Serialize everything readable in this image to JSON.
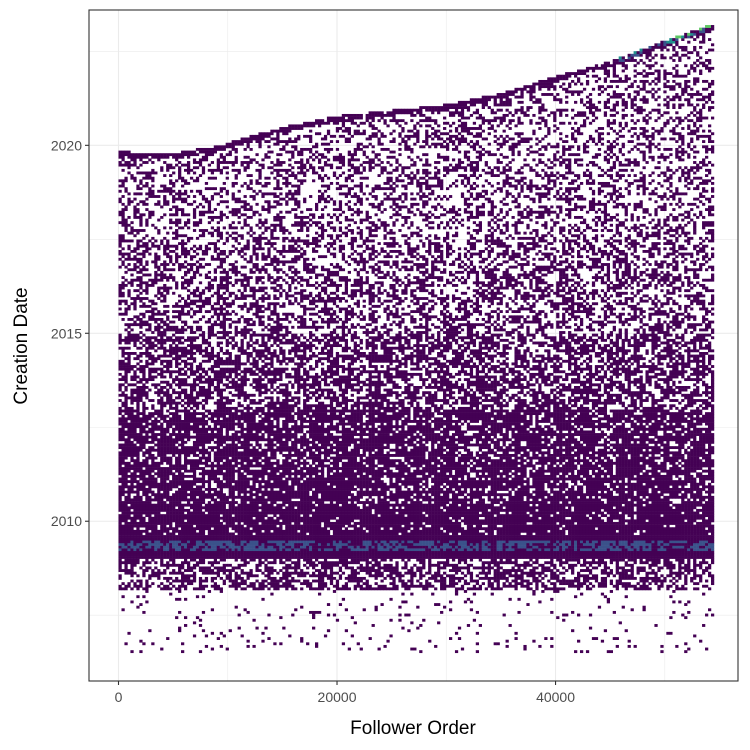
{
  "chart_data": {
    "type": "heatmap",
    "title": "",
    "xlabel": "Follower Order",
    "ylabel": "Creation Date",
    "xlim": [
      -2700,
      56700
    ],
    "ylim": [
      2005.75,
      2023.6
    ],
    "x_ticks": [
      0,
      20000,
      40000
    ],
    "x_tick_labels": [
      "0",
      "20000",
      "40000"
    ],
    "y_ticks": [
      2010,
      2015,
      2020
    ],
    "y_tick_labels": [
      "2010",
      "2015",
      "2020"
    ],
    "y_minor_ticks": [
      2007.5,
      2012.5,
      2017.5,
      2022.5
    ],
    "x_minor_ticks": [
      10000,
      30000,
      50000
    ],
    "grid": true,
    "legend": "none",
    "x_range": [
      0,
      54500
    ],
    "y_range": [
      2006.5,
      2023.2
    ],
    "upper_boundary": {
      "x": [
        0,
        5000,
        9000,
        15000,
        20000,
        25000,
        30000,
        35000,
        40000,
        45000,
        50000,
        54500
      ],
      "y": [
        2019.8,
        2019.75,
        2019.95,
        2020.45,
        2020.75,
        2020.9,
        2021.05,
        2021.35,
        2021.8,
        2022.2,
        2022.75,
        2023.2
      ]
    },
    "density_bands": [
      {
        "y": [
          2006.5,
          2008.2
        ],
        "density": 0.05
      },
      {
        "y": [
          2008.2,
          2009.0
        ],
        "density": 0.55
      },
      {
        "y": [
          2009.0,
          2009.6
        ],
        "density": 1.0
      },
      {
        "y": [
          2009.6,
          2010.5
        ],
        "density": 0.9
      },
      {
        "y": [
          2010.5,
          2013.0
        ],
        "density": 0.8
      },
      {
        "y": [
          2013.0,
          2015.0
        ],
        "density": 0.6
      },
      {
        "y": [
          2015.0,
          2017.5
        ],
        "density": 0.45
      },
      {
        "y": [
          2017.5,
          2023.2
        ],
        "density": 0.35
      }
    ],
    "colors": {
      "low": "#440154",
      "mid": "#3b528b",
      "high": "#21908c",
      "top": "#5dc863",
      "panel_border": "#333333",
      "grid": "#ebebeb"
    }
  }
}
